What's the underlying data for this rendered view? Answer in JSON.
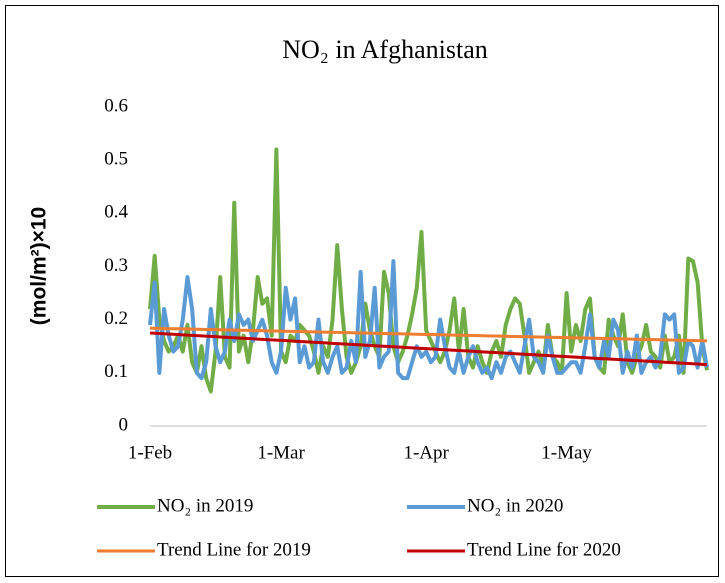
{
  "chart_data": {
    "type": "line",
    "title": "NO₂ in Afghanistan",
    "y_label": "(mol/m²)×10",
    "categories": [
      "1-Feb",
      null,
      null,
      null,
      null,
      null,
      null,
      null,
      null,
      null,
      null,
      null,
      null,
      null,
      null,
      null,
      null,
      null,
      null,
      null,
      null,
      null,
      null,
      null,
      null,
      null,
      null,
      null,
      "1-Mar",
      null,
      null,
      null,
      null,
      null,
      null,
      null,
      null,
      null,
      null,
      null,
      null,
      null,
      null,
      null,
      null,
      null,
      null,
      null,
      null,
      null,
      null,
      null,
      null,
      null,
      null,
      null,
      null,
      null,
      null,
      "1-Apr",
      null,
      null,
      null,
      null,
      null,
      null,
      null,
      null,
      null,
      null,
      null,
      null,
      null,
      null,
      null,
      null,
      null,
      null,
      null,
      null,
      null,
      null,
      null,
      null,
      null,
      null,
      null,
      null,
      null,
      "1-May",
      null,
      null,
      null,
      null,
      null,
      null,
      null,
      null,
      null,
      null,
      null,
      null,
      null,
      null,
      null,
      null,
      null,
      null,
      null,
      null,
      null,
      null,
      null,
      null,
      null,
      null,
      null,
      null,
      null,
      null
    ],
    "ylim": [
      0,
      0.6
    ],
    "yticks": [
      0,
      0.1,
      0.2,
      0.3,
      0.4,
      0.5,
      0.6
    ],
    "series": [
      {
        "name": "NO₂ in 2019",
        "color": "#70ad47",
        "values": [
          0.22,
          0.32,
          0.2,
          0.16,
          0.14,
          0.15,
          0.17,
          0.14,
          0.19,
          0.12,
          0.1,
          0.15,
          0.09,
          0.065,
          0.14,
          0.28,
          0.13,
          0.11,
          0.42,
          0.14,
          0.17,
          0.12,
          0.18,
          0.28,
          0.23,
          0.24,
          0.17,
          0.52,
          0.14,
          0.12,
          0.17,
          0.16,
          0.19,
          0.18,
          0.17,
          0.14,
          0.1,
          0.15,
          0.13,
          0.2,
          0.34,
          0.22,
          0.13,
          0.1,
          0.12,
          0.15,
          0.23,
          0.18,
          0.15,
          0.13,
          0.29,
          0.25,
          0.15,
          0.12,
          0.14,
          0.17,
          0.21,
          0.26,
          0.365,
          0.18,
          0.16,
          0.14,
          0.12,
          0.14,
          0.18,
          0.24,
          0.14,
          0.22,
          0.13,
          0.11,
          0.15,
          0.12,
          0.1,
          0.14,
          0.16,
          0.13,
          0.19,
          0.22,
          0.24,
          0.23,
          0.17,
          0.1,
          0.12,
          0.14,
          0.11,
          0.19,
          0.13,
          0.12,
          0.1,
          0.25,
          0.14,
          0.19,
          0.16,
          0.22,
          0.24,
          0.13,
          0.11,
          0.1,
          0.2,
          0.17,
          0.15,
          0.21,
          0.12,
          0.1,
          0.13,
          0.15,
          0.19,
          0.14,
          0.13,
          0.11,
          0.17,
          0.12,
          0.13,
          0.17,
          0.1,
          0.315,
          0.31,
          0.27,
          0.15,
          0.105
        ]
      },
      {
        "name": "NO₂ in 2020",
        "color": "#5b9bd5",
        "values": [
          0.19,
          0.27,
          0.1,
          0.22,
          0.17,
          0.14,
          0.15,
          0.2,
          0.28,
          0.22,
          0.1,
          0.09,
          0.12,
          0.22,
          0.15,
          0.12,
          0.14,
          0.2,
          0.16,
          0.21,
          0.19,
          0.2,
          0.16,
          0.18,
          0.2,
          0.17,
          0.12,
          0.1,
          0.14,
          0.26,
          0.2,
          0.24,
          0.12,
          0.15,
          0.11,
          0.12,
          0.2,
          0.12,
          0.1,
          0.13,
          0.15,
          0.1,
          0.11,
          0.16,
          0.12,
          0.29,
          0.13,
          0.16,
          0.26,
          0.11,
          0.13,
          0.14,
          0.31,
          0.1,
          0.09,
          0.09,
          0.12,
          0.15,
          0.13,
          0.14,
          0.12,
          0.13,
          0.2,
          0.15,
          0.11,
          0.1,
          0.14,
          0.1,
          0.13,
          0.15,
          0.12,
          0.1,
          0.11,
          0.09,
          0.12,
          0.1,
          0.13,
          0.14,
          0.12,
          0.1,
          0.15,
          0.2,
          0.13,
          0.12,
          0.1,
          0.17,
          0.13,
          0.1,
          0.1,
          0.11,
          0.12,
          0.12,
          0.1,
          0.15,
          0.21,
          0.13,
          0.11,
          0.16,
          0.13,
          0.2,
          0.18,
          0.1,
          0.14,
          0.11,
          0.17,
          0.1,
          0.12,
          0.13,
          0.11,
          0.13,
          0.21,
          0.2,
          0.21,
          0.1,
          0.11,
          0.16,
          0.15,
          0.11,
          0.16,
          0.11
        ]
      },
      {
        "name": "Trend Line for 2019",
        "color": "#ed7d31",
        "values": [
          0.184,
          0.1838,
          0.1836,
          0.1834,
          0.1832,
          0.183,
          0.1828,
          0.1826,
          0.1824,
          0.1822,
          0.182,
          0.1818,
          0.1816,
          0.1814,
          0.1812,
          0.181,
          0.1808,
          0.1806,
          0.1804,
          0.1802,
          0.18,
          0.1798,
          0.1796,
          0.1794,
          0.1792,
          0.179,
          0.1788,
          0.1786,
          0.1784,
          0.1782,
          0.178,
          0.1778,
          0.1776,
          0.1774,
          0.1772,
          0.177,
          0.1768,
          0.1766,
          0.1764,
          0.1762,
          0.176,
          0.1758,
          0.1756,
          0.1754,
          0.1752,
          0.175,
          0.1748,
          0.1746,
          0.1744,
          0.1742,
          0.174,
          0.1738,
          0.1736,
          0.1734,
          0.1732,
          0.173,
          0.1728,
          0.1726,
          0.1724,
          0.1722,
          0.172,
          0.1718,
          0.1716,
          0.1714,
          0.1712,
          0.171,
          0.1708,
          0.1706,
          0.1704,
          0.1702,
          0.17,
          0.1698,
          0.1696,
          0.1694,
          0.1692,
          0.169,
          0.1688,
          0.1686,
          0.1684,
          0.1682,
          0.168,
          0.1678,
          0.1676,
          0.1674,
          0.1672,
          0.167,
          0.1668,
          0.1666,
          0.1664,
          0.1662,
          0.166,
          0.1658,
          0.1656,
          0.1654,
          0.1652,
          0.165,
          0.1648,
          0.1646,
          0.1644,
          0.1642,
          0.164,
          0.1638,
          0.1636,
          0.1634,
          0.1632,
          0.163,
          0.1628,
          0.1626,
          0.1624,
          0.1622,
          0.162,
          0.1618,
          0.1616,
          0.1614,
          0.1612,
          0.161,
          0.1608,
          0.1606,
          0.1604,
          0.1602
        ]
      },
      {
        "name": "Trend Line for 2020",
        "color": "#c00000",
        "values": [
          0.175,
          0.1745,
          0.174,
          0.1735,
          0.173,
          0.1725,
          0.172,
          0.1715,
          0.171,
          0.1705,
          0.17,
          0.1695,
          0.169,
          0.1685,
          0.168,
          0.1675,
          0.167,
          0.1665,
          0.166,
          0.1655,
          0.165,
          0.1645,
          0.164,
          0.1635,
          0.163,
          0.1625,
          0.162,
          0.1615,
          0.161,
          0.1605,
          0.16,
          0.1595,
          0.159,
          0.1585,
          0.158,
          0.1575,
          0.157,
          0.1565,
          0.156,
          0.1555,
          0.155,
          0.1545,
          0.154,
          0.1535,
          0.153,
          0.1525,
          0.152,
          0.1515,
          0.151,
          0.1505,
          0.15,
          0.1495,
          0.149,
          0.1485,
          0.148,
          0.1475,
          0.147,
          0.1465,
          0.146,
          0.1455,
          0.145,
          0.1445,
          0.144,
          0.1435,
          0.143,
          0.1425,
          0.142,
          0.1415,
          0.141,
          0.1405,
          0.14,
          0.1395,
          0.139,
          0.1385,
          0.138,
          0.1375,
          0.137,
          0.1365,
          0.136,
          0.1355,
          0.135,
          0.1345,
          0.134,
          0.1335,
          0.133,
          0.1325,
          0.132,
          0.1315,
          0.131,
          0.1305,
          0.13,
          0.1295,
          0.129,
          0.1285,
          0.128,
          0.1275,
          0.127,
          0.1265,
          0.126,
          0.1255,
          0.125,
          0.1245,
          0.124,
          0.1235,
          0.123,
          0.1225,
          0.122,
          0.1215,
          0.121,
          0.1205,
          0.12,
          0.1195,
          0.119,
          0.1185,
          0.118,
          0.1175,
          0.117,
          0.1165,
          0.116,
          0.1155
        ]
      }
    ]
  }
}
